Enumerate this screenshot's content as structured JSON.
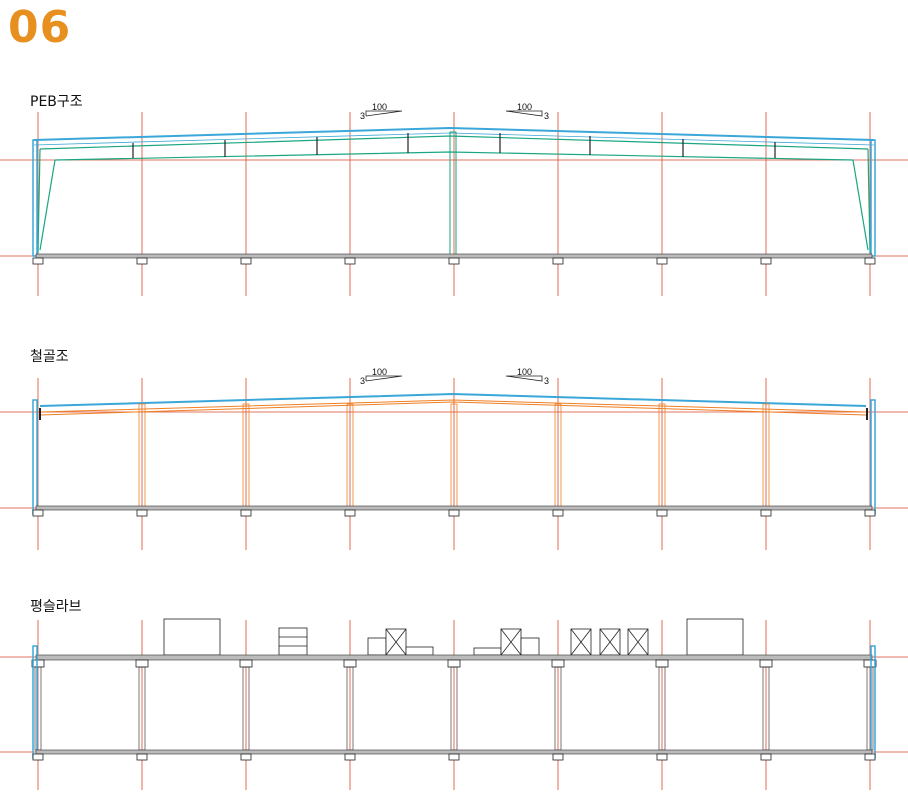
{
  "page_number": "06",
  "sections": [
    {
      "label": "PEB구조"
    },
    {
      "label": "철골조"
    },
    {
      "label": "평슬라브"
    }
  ],
  "slope_marks": {
    "rise": "3",
    "run": "100"
  },
  "colors": {
    "accent": "#e8901f",
    "grid_line": "#d9472b",
    "steel_blue": "#3ba7d9",
    "peb_green": "#1aa682",
    "truss_orange": "#ef7f22",
    "outline": "#222222"
  }
}
